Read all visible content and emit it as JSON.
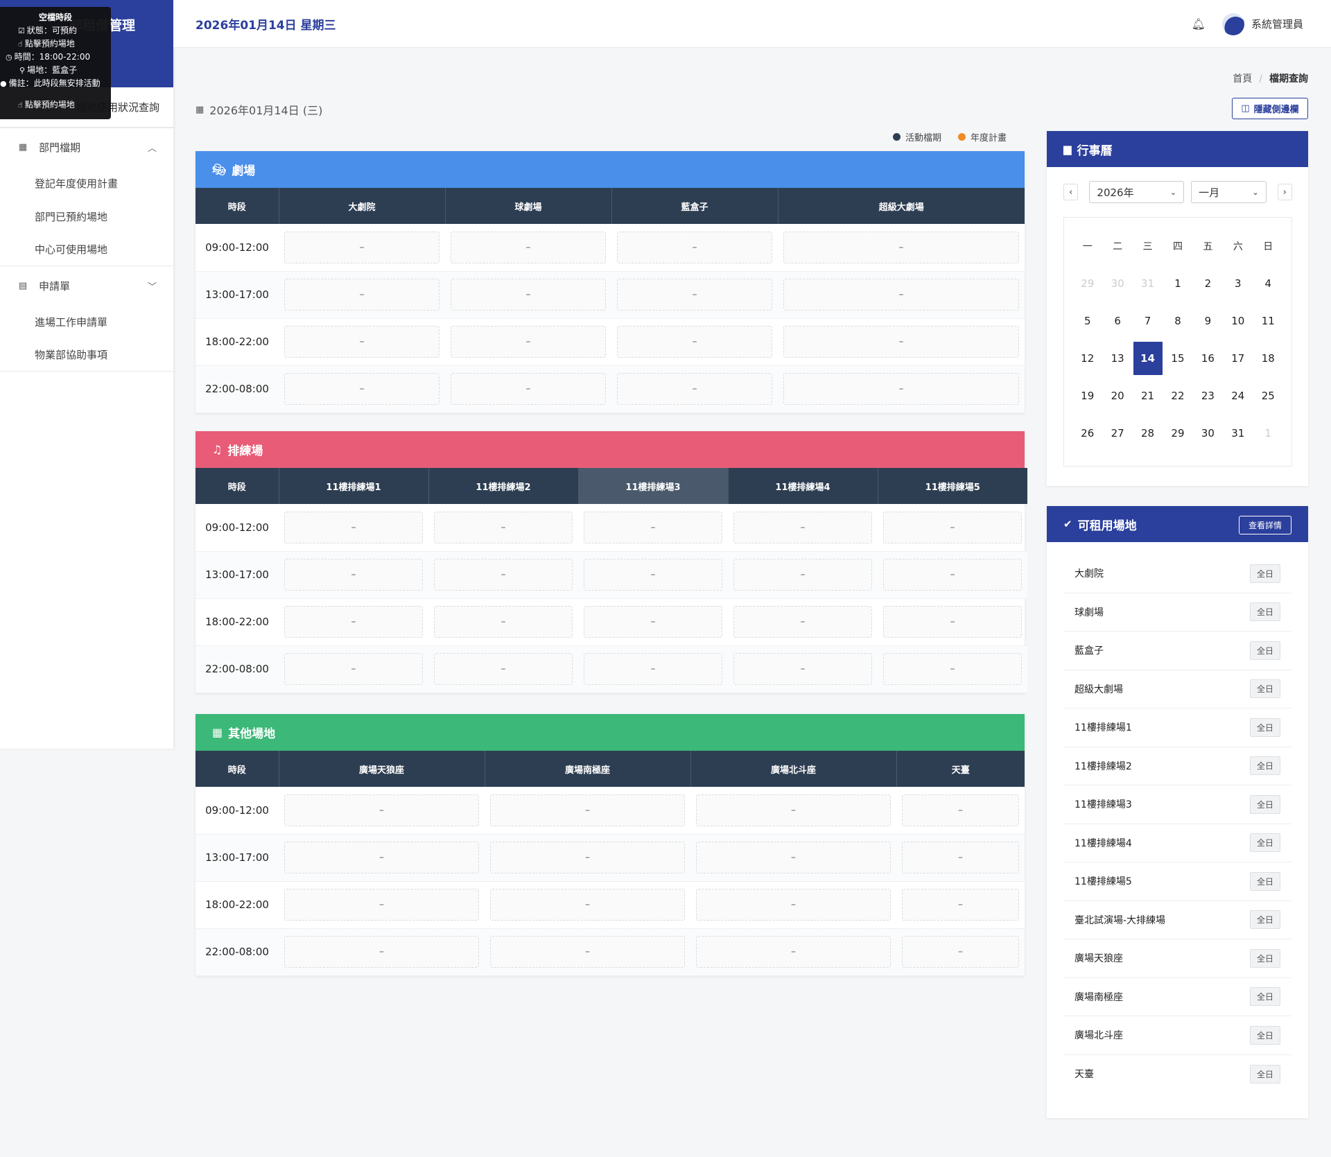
{
  "app": {
    "brand": "部租借管理",
    "brand_visible": "部租借管理"
  },
  "sidebar": {
    "top_link": "場地使用狀況查詢",
    "groups": [
      {
        "label": "部門檔期",
        "items": [
          "登記年度使用計畫",
          "部門已預約場地",
          "中心可使用場地"
        ]
      },
      {
        "label": "申請單",
        "items": [
          "進場工作申請單",
          "物業部協助事項"
        ]
      }
    ]
  },
  "tooltip": {
    "title": "空檔時段",
    "status": "狀態：可預約",
    "click1": "點擊預約場地",
    "time": "時間：18:00-22:00",
    "venue": "場地：藍盒子",
    "note": "備註：此時段無安排活動",
    "click2": "點擊預約場地"
  },
  "header": {
    "date": "2026年01月14日 星期三",
    "user": "系統管理員"
  },
  "breadcrumb": {
    "home": "首頁",
    "current": "檔期查詢"
  },
  "toolbar": {
    "hide_sidebar": "隱藏側邊欄"
  },
  "current_date": "2026年01月14日 (三)",
  "legend": [
    {
      "label": "活動檔期",
      "color": "#2d3e52"
    },
    {
      "label": "年度計畫",
      "color": "#f08a24"
    }
  ],
  "time_col": "時段",
  "empty": "–",
  "time_slots": [
    "09:00-12:00",
    "13:00-17:00",
    "18:00-22:00",
    "22:00-08:00"
  ],
  "sections": [
    {
      "title": "劇場",
      "color": "#4a8fea",
      "icon": "theater-masks-icon",
      "venues": [
        "大劇院",
        "球劇場",
        "藍盒子",
        "超級大劇場"
      ]
    },
    {
      "title": "排練場",
      "color": "#e85c78",
      "icon": "music-note-icon",
      "venues": [
        "11樓排練場1",
        "11樓排練場2",
        "11樓排練場3",
        "11樓排練場4",
        "11樓排練場5"
      ]
    },
    {
      "title": "其他場地",
      "color": "#3cb878",
      "icon": "building-icon",
      "venues": [
        "廣場天狼座",
        "廣場南極座",
        "廣場北斗座",
        "天臺"
      ]
    }
  ],
  "calendar": {
    "title": "行事曆",
    "year": "2026年",
    "month": "一月",
    "weekdays": [
      "一",
      "二",
      "三",
      "四",
      "五",
      "六",
      "日"
    ],
    "weeks": [
      [
        "29",
        "30",
        "31",
        "1",
        "2",
        "3",
        "4"
      ],
      [
        "5",
        "6",
        "7",
        "8",
        "9",
        "10",
        "11"
      ],
      [
        "12",
        "13",
        "14",
        "15",
        "16",
        "17",
        "18"
      ],
      [
        "19",
        "20",
        "21",
        "22",
        "23",
        "24",
        "25"
      ],
      [
        "26",
        "27",
        "28",
        "29",
        "30",
        "31",
        "1"
      ]
    ],
    "today": "14"
  },
  "available": {
    "title": "可租用場地",
    "detail_btn": "查看詳情",
    "badge": "全日",
    "venues": [
      "大劇院",
      "球劇場",
      "藍盒子",
      "超級大劇場",
      "11樓排練場1",
      "11樓排練場2",
      "11樓排練場3",
      "11樓排練場4",
      "11樓排練場5",
      "臺北試演場-大排練場",
      "廣場天狼座",
      "廣場南極座",
      "廣場北斗座",
      "天臺"
    ]
  }
}
